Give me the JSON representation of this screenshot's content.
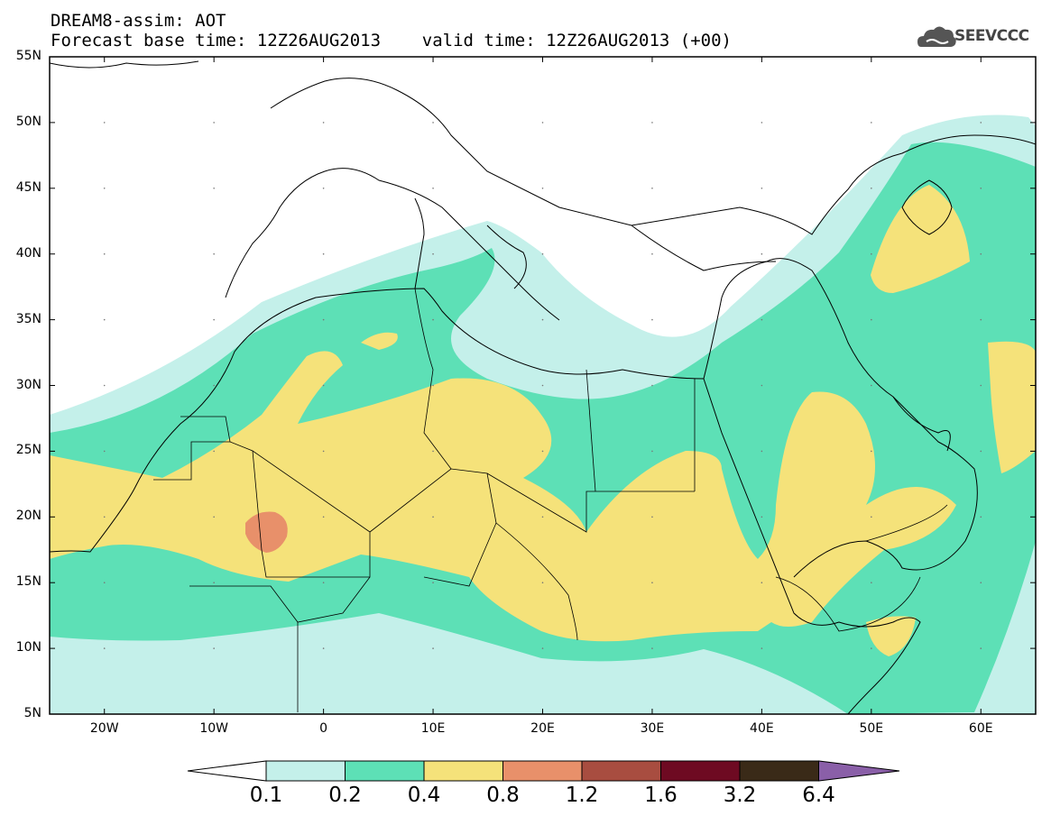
{
  "title": {
    "line1": "DREAM8-assim: AOT",
    "line2": "Forecast base time: 12Z26AUG2013    valid time: 12Z26AUG2013 (+00)"
  },
  "logo": {
    "text": "SEEVCCC",
    "icon": "cloud-icon"
  },
  "map": {
    "variable": "AOT",
    "lon_range": [
      -25,
      65
    ],
    "lat_range": [
      5,
      55
    ],
    "lat_labels": [
      "55N",
      "50N",
      "45N",
      "40N",
      "35N",
      "30N",
      "25N",
      "20N",
      "15N",
      "10N",
      "5N"
    ],
    "lon_labels": [
      "20W",
      "10W",
      "0",
      "10E",
      "20E",
      "30E",
      "40E",
      "50E",
      "60E"
    ]
  },
  "colorbar": {
    "labels": [
      "0.1",
      "0.2",
      "0.4",
      "0.8",
      "1.2",
      "1.6",
      "3.2",
      "6.4"
    ],
    "colors": [
      "#ffffff",
      "#c4f0ea",
      "#5de0b6",
      "#f5e27a",
      "#e8906a",
      "#a84d40",
      "#6e0a22",
      "#3a2a18",
      "#8a5fa8"
    ]
  }
}
